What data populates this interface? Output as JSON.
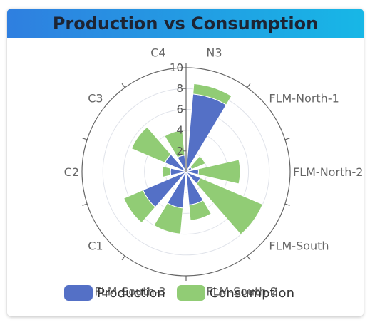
{
  "title": "Production vs Consumption",
  "chart_data": {
    "type": "polar-bar-stacked",
    "title": "Production vs Consumption",
    "categories": [
      "N3",
      "FLM-North-1",
      "FLM-North-2",
      "FLM-South",
      "FLM-South-2",
      "FLM-South-3",
      "C1",
      "C2",
      "C3",
      "C4"
    ],
    "radial_ticks": [
      2,
      4,
      6,
      8,
      10
    ],
    "rlim": [
      0,
      10
    ],
    "series": [
      {
        "name": "Production",
        "color": "#5470c6",
        "values": [
          7.5,
          0.6,
          1.2,
          1.5,
          3.2,
          3.5,
          4.5,
          1.5,
          2.2,
          1.6
        ]
      },
      {
        "name": "Consumption",
        "color": "#91cc75",
        "values": [
          1.0,
          1.4,
          4.0,
          6.5,
          1.5,
          2.5,
          2.0,
          0.8,
          3.5,
          2.4
        ]
      }
    ],
    "grid": true,
    "legend_position": "bottom"
  },
  "legend": [
    {
      "label": "Production",
      "color": "#5470c6"
    },
    {
      "label": "Consumption",
      "color": "#91cc75"
    }
  ]
}
